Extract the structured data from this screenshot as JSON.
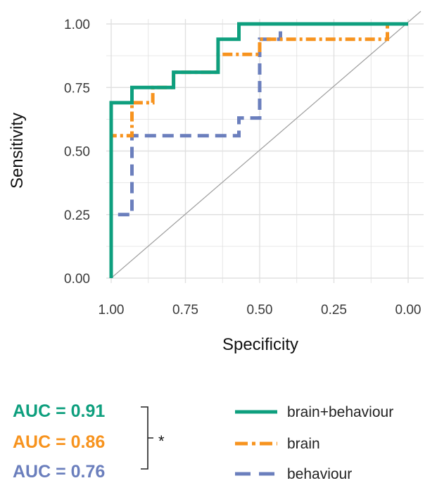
{
  "chart_data": {
    "type": "line",
    "xlabel": "Specificity",
    "ylabel": "Sensitivity",
    "xlim": [
      1.0,
      0.0
    ],
    "ylim": [
      0.0,
      1.0
    ],
    "x_reversed": true,
    "xticks": [
      "1.00",
      "0.75",
      "0.50",
      "0.25",
      "0.00"
    ],
    "yticks": [
      "0.00",
      "0.25",
      "0.50",
      "0.75",
      "1.00"
    ],
    "grid": true,
    "reference_line": {
      "x": [
        1.0,
        0.0
      ],
      "y": [
        0.0,
        1.0
      ],
      "color": "#9e9e9e"
    },
    "series": [
      {
        "name": "brain+behaviour",
        "color": "#0e9f7e",
        "dash": "solid",
        "x": [
          1.0,
          1.0,
          0.93,
          0.93,
          0.79,
          0.79,
          0.64,
          0.64,
          0.57,
          0.57,
          0.0
        ],
        "y": [
          0.0,
          0.69,
          0.69,
          0.75,
          0.75,
          0.81,
          0.81,
          0.94,
          0.94,
          1.0,
          1.0
        ]
      },
      {
        "name": "brain",
        "color": "#f7931e",
        "dash": "dashdot",
        "x": [
          1.0,
          1.0,
          0.93,
          0.93,
          0.86,
          0.86,
          0.79,
          0.79,
          0.64,
          0.64,
          0.5,
          0.5,
          0.07,
          0.07,
          0.0
        ],
        "y": [
          0.0,
          0.56,
          0.56,
          0.69,
          0.69,
          0.75,
          0.75,
          0.81,
          0.81,
          0.88,
          0.88,
          0.94,
          0.94,
          1.0,
          1.0
        ]
      },
      {
        "name": "behaviour",
        "color": "#6b7fbd",
        "dash": "dashed",
        "x": [
          1.0,
          1.0,
          0.93,
          0.93,
          0.57,
          0.57,
          0.5,
          0.5,
          0.43,
          0.43,
          0.0
        ],
        "y": [
          0.0,
          0.25,
          0.25,
          0.56,
          0.56,
          0.63,
          0.63,
          0.94,
          0.94,
          1.0,
          1.0
        ]
      }
    ],
    "legend": {
      "placement": "bottom-right",
      "entries": [
        "brain+behaviour",
        "brain",
        "behaviour"
      ]
    },
    "annotations": {
      "auc": [
        {
          "text": "AUC = 0.91",
          "color": "#0e9f7e"
        },
        {
          "text": "AUC = 0.86",
          "color": "#f7931e"
        },
        {
          "text": "AUC = 0.76",
          "color": "#6b7fbd"
        }
      ],
      "significance": "*"
    }
  }
}
